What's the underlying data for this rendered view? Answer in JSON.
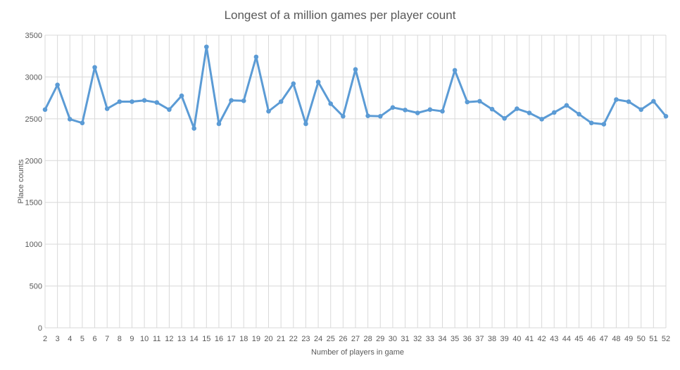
{
  "chart_data": {
    "type": "line",
    "title": "Longest of a million games per player count",
    "xlabel": "Number  of players in game",
    "ylabel": "Place counts",
    "ylim": [
      0,
      3500
    ],
    "y_ticks": [
      0,
      500,
      1000,
      1500,
      2000,
      2500,
      3000,
      3500
    ],
    "grid": true,
    "legend": "none",
    "line_color": "#5B9BD5",
    "x": [
      2,
      3,
      4,
      5,
      6,
      7,
      8,
      9,
      10,
      11,
      12,
      13,
      14,
      15,
      16,
      17,
      18,
      19,
      20,
      21,
      22,
      23,
      24,
      25,
      26,
      27,
      28,
      29,
      30,
      31,
      32,
      33,
      34,
      35,
      36,
      37,
      38,
      39,
      40,
      41,
      42,
      43,
      44,
      45,
      46,
      47,
      48,
      49,
      50,
      51,
      52
    ],
    "series": [
      {
        "values": [
          2610,
          2905,
          2495,
          2450,
          3115,
          2620,
          2705,
          2705,
          2720,
          2695,
          2610,
          2775,
          2385,
          3360,
          2440,
          2720,
          2715,
          3240,
          2590,
          2705,
          2920,
          2440,
          2940,
          2680,
          2530,
          3090,
          2535,
          2530,
          2635,
          2605,
          2570,
          2610,
          2590,
          3080,
          2700,
          2710,
          2615,
          2505,
          2620,
          2570,
          2495,
          2575,
          2660,
          2555,
          2450,
          2435,
          2730,
          2705,
          2610,
          2710,
          2530
        ]
      }
    ]
  }
}
